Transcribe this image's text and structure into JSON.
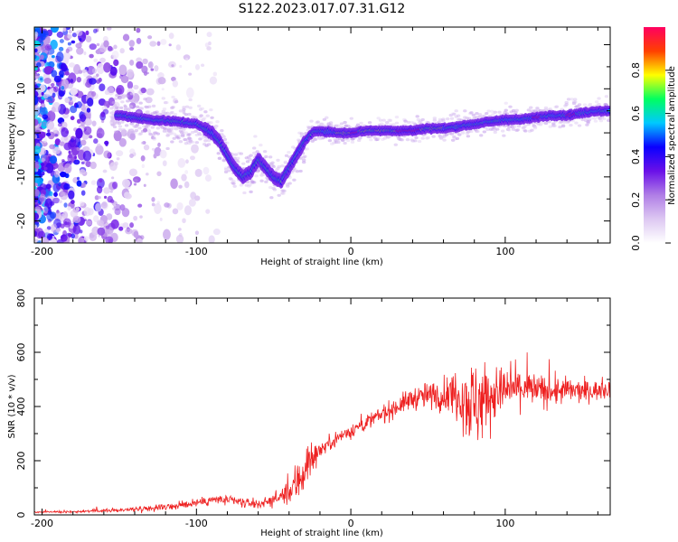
{
  "figure_title": "S122.2023.017.07.31.G12",
  "chart_data": [
    {
      "type": "heatmap",
      "xlabel": "Height of straight line (km)",
      "ylabel": "Frequency (Hz)",
      "xlim": [
        -205,
        168
      ],
      "ylim": [
        -25,
        24
      ],
      "x_ticks": [
        -200,
        -100,
        0,
        100
      ],
      "y_ticks": [
        -20,
        -10,
        0,
        10,
        20
      ],
      "colorbar": {
        "label": "Normalized spectral amplitude",
        "range": [
          0,
          1
        ],
        "ticks": [
          0.0,
          0.2,
          0.4,
          0.6,
          0.8
        ]
      },
      "ridge_frequency_track": {
        "x": [
          -150,
          -130,
          -110,
          -100,
          -90,
          -85,
          -80,
          -75,
          -70,
          -65,
          -60,
          -55,
          -50,
          -45,
          -40,
          -35,
          -30,
          -25,
          -20,
          -10,
          0,
          10,
          20,
          30,
          40,
          50,
          60,
          70,
          80,
          90,
          100,
          110,
          120,
          130,
          140,
          150,
          160,
          168
        ],
        "y": [
          4,
          3,
          2.5,
          2,
          0,
          -2,
          -5,
          -8,
          -10,
          -9,
          -6,
          -8,
          -10,
          -11,
          -8,
          -5,
          -2,
          0,
          0.5,
          0,
          0,
          0.5,
          0.5,
          0.5,
          0.5,
          1,
          1,
          1.5,
          2,
          2.5,
          3,
          3,
          3.5,
          4,
          4,
          4.5,
          5,
          5
        ]
      },
      "color_stops": [
        "#ffffff",
        "#ddc8f2",
        "#b07ee6",
        "#6a10e8",
        "#0a00ff",
        "#00c8ff",
        "#00ff60",
        "#ffff00",
        "#ff4000",
        "#ff0060"
      ]
    },
    {
      "type": "line",
      "xlabel": "Height of straight line (km)",
      "ylabel": "SNR (10 * v/v)",
      "xlim": [
        -205,
        168
      ],
      "ylim": [
        0,
        800
      ],
      "x_ticks": [
        -200,
        -100,
        0,
        100
      ],
      "y_ticks": [
        0,
        200,
        400,
        600,
        800
      ],
      "line_color": "#ee2020",
      "envelope": {
        "x": [
          -205,
          -180,
          -150,
          -130,
          -110,
          -100,
          -90,
          -80,
          -70,
          -60,
          -50,
          -40,
          -35,
          -30,
          -25,
          -20,
          -15,
          -10,
          0,
          10,
          20,
          30,
          40,
          50,
          60,
          70,
          75,
          80,
          85,
          90,
          100,
          110,
          120,
          130,
          140,
          150,
          160,
          168
        ],
        "center": [
          10,
          12,
          18,
          25,
          35,
          45,
          55,
          55,
          45,
          40,
          55,
          80,
          120,
          170,
          210,
          240,
          260,
          280,
          310,
          340,
          370,
          400,
          430,
          440,
          445,
          450,
          430,
          400,
          430,
          440,
          460,
          470,
          460,
          455,
          460,
          455,
          460,
          465
        ],
        "spread": [
          5,
          6,
          10,
          15,
          20,
          25,
          30,
          30,
          25,
          25,
          30,
          60,
          120,
          150,
          80,
          40,
          40,
          40,
          40,
          40,
          50,
          50,
          60,
          70,
          90,
          140,
          220,
          250,
          220,
          150,
          120,
          110,
          90,
          80,
          70,
          60,
          50,
          50
        ]
      }
    }
  ]
}
